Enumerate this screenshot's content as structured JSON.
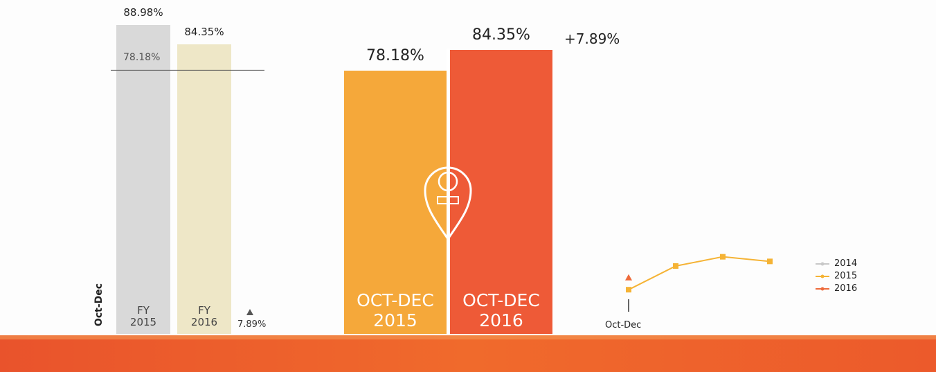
{
  "chart_data": [
    {
      "type": "bar",
      "categories": [
        "FY 2015",
        "FY 2016"
      ],
      "values": [
        88.98,
        84.35
      ],
      "value_labels": [
        "88.98%",
        "84.35%"
      ],
      "colors": [
        "#d9d9d9",
        "#eee7c7"
      ],
      "ylim": [
        15,
        95
      ],
      "reference_line": {
        "value": 78.18,
        "label": "78.18%"
      },
      "period_label": "Oct-Dec",
      "change_label": "7.89%"
    },
    {
      "type": "bar",
      "categories": [
        "OCT-DEC 2015",
        "OCT-DEC 2016"
      ],
      "values": [
        78.18,
        84.35
      ],
      "value_labels": [
        "78.18%",
        "84.35%"
      ],
      "colors": [
        "#f5a83a",
        "#ee5a37"
      ],
      "ylim": [
        0,
        100
      ],
      "change_label": "+7.89%"
    },
    {
      "type": "line",
      "categories": [
        "Oct-Dec",
        null,
        null,
        null
      ],
      "series": [
        {
          "name": "2014",
          "color": "#c8c8c8",
          "values": [
            null,
            null,
            null,
            null
          ]
        },
        {
          "name": "2015",
          "color": "#f5b335",
          "values": [
            78.18,
            91,
            96,
            93.5
          ]
        },
        {
          "name": "2016",
          "color": "#ee6a3a",
          "values": [
            84.35,
            null,
            null,
            null
          ]
        }
      ],
      "ylim": [
        70,
        100
      ]
    }
  ]
}
